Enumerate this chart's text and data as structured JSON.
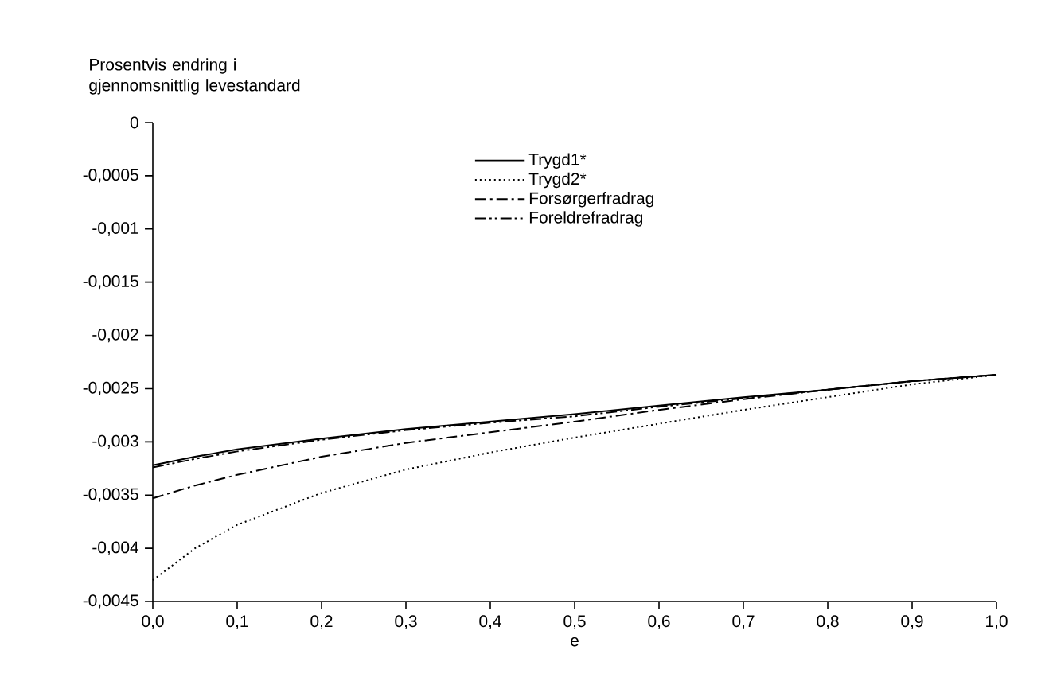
{
  "chart_data": {
    "type": "line",
    "ylabel": "Prosentvis endring i gjennomsnittlig levestandard",
    "xlabel": "e",
    "x": [
      0,
      0.05,
      0.1,
      0.2,
      0.3,
      0.4,
      0.5,
      0.6,
      0.7,
      0.8,
      0.9,
      1.0
    ],
    "series": [
      {
        "name": "Trygd1*",
        "color": "#000000",
        "line_style": "solid",
        "values": [
          -0.00322,
          -0.00314,
          -0.00307,
          -0.00297,
          -0.00288,
          -0.00281,
          -0.00274,
          -0.00266,
          -0.00258,
          -0.00251,
          -0.00243,
          -0.00237
        ]
      },
      {
        "name": "Trygd2*",
        "color": "#000000",
        "line_style": "dotted",
        "values": [
          -0.0043,
          -0.004,
          -0.00378,
          -0.00348,
          -0.00326,
          -0.0031,
          -0.00296,
          -0.00283,
          -0.0027,
          -0.00258,
          -0.00246,
          -0.00237
        ]
      },
      {
        "name": "Forsørgerfradrag",
        "color": "#000000",
        "line_style": "dashdotted",
        "values": [
          -0.00353,
          -0.00341,
          -0.00331,
          -0.00314,
          -0.00301,
          -0.00291,
          -0.00281,
          -0.0027,
          -0.0026,
          -0.00251,
          -0.00243,
          -0.00237
        ]
      },
      {
        "name": "Foreldrefradrag",
        "color": "#000000",
        "line_style": "dashdotdotted",
        "values": [
          -0.00324,
          -0.00316,
          -0.00309,
          -0.00298,
          -0.00289,
          -0.00282,
          -0.00276,
          -0.00267,
          -0.00259,
          -0.00251,
          -0.00243,
          -0.00237
        ]
      }
    ],
    "xlim": [
      0,
      1.0
    ],
    "ylim": [
      -0.0045,
      0
    ],
    "xticks": [
      {
        "value": 0,
        "label": "0,0"
      },
      {
        "value": 0.1,
        "label": "0,1"
      },
      {
        "value": 0.2,
        "label": "0,2"
      },
      {
        "value": 0.3,
        "label": "0,3"
      },
      {
        "value": 0.4,
        "label": "0,4"
      },
      {
        "value": 0.5,
        "label": "0,5"
      },
      {
        "value": 0.6,
        "label": "0,6"
      },
      {
        "value": 0.7,
        "label": "0,7"
      },
      {
        "value": 0.8,
        "label": "0,8"
      },
      {
        "value": 0.9,
        "label": "0,9"
      },
      {
        "value": 1.0,
        "label": "1,0"
      }
    ],
    "yticks": [
      0,
      {
        "value": -0.0005,
        "label": "-0,0005"
      },
      {
        "value": -0.001,
        "label": "-0,001"
      },
      {
        "value": -0.0015,
        "label": "-0,0015"
      },
      {
        "value": -0.002,
        "label": "-0,002"
      },
      {
        "value": -0.0025,
        "label": "-0,0025"
      },
      {
        "value": -0.003,
        "label": "-0,003"
      },
      {
        "value": -0.0035,
        "label": "-0,0035"
      },
      {
        "value": -0.004,
        "label": "-0,004"
      },
      {
        "value": -0.0045,
        "label": "-0,0045"
      }
    ],
    "grid": false,
    "legend": "top",
    "marker": "none"
  }
}
